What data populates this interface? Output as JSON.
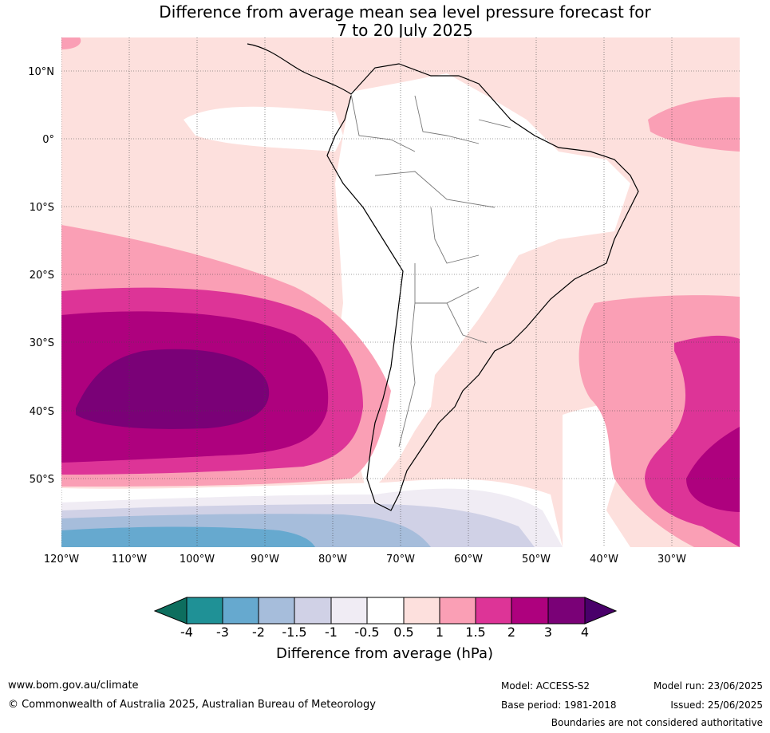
{
  "title": {
    "line1": "Difference from average mean sea level pressure forecast for",
    "line2": "7 to 20 July 2025"
  },
  "map": {
    "lat_labels": [
      "10°N",
      "0°",
      "10°S",
      "20°S",
      "30°S",
      "40°S",
      "50°S"
    ],
    "lon_labels": [
      "120°W",
      "110°W",
      "100°W",
      "90°W",
      "80°W",
      "70°W",
      "60°W",
      "50°W",
      "40°W",
      "30°W"
    ],
    "palette": {
      "lt_neg4": "#0d6e5e",
      "neg4_neg3": "#1f9196",
      "neg3_neg2": "#66a9cf",
      "neg2_neg1_5": "#a6bddb",
      "neg1_5_neg1": "#d0d1e6",
      "neg1_neg0_5": "#f0ecf4",
      "neg0_5_0_5": "#ffffff",
      "p0_5_1": "#fde0dd",
      "p1_1_5": "#fa9fb5",
      "p1_5_2": "#dd3497",
      "p2_3": "#ae017e",
      "p3_4": "#7a0177",
      "gt4": "#49006a"
    }
  },
  "colorbar": {
    "tick_labels": [
      "-4",
      "-3",
      "-2",
      "-1.5",
      "-1",
      "-0.5",
      "0.5",
      "1",
      "1.5",
      "2",
      "3",
      "4"
    ],
    "label": "Difference from average (hPa)"
  },
  "footer": {
    "website": "www.bom.gov.au/climate",
    "copyright": "© Commonwealth of Australia 2025, Australian Bureau of Meteorology",
    "model": "Model: ACCESS-S2",
    "base_period": "Base period: 1981-2018",
    "model_run": "Model run: 23/06/2025",
    "issued": "Issued: 25/06/2025",
    "disclaimer": "Boundaries are not considered authoritative"
  }
}
